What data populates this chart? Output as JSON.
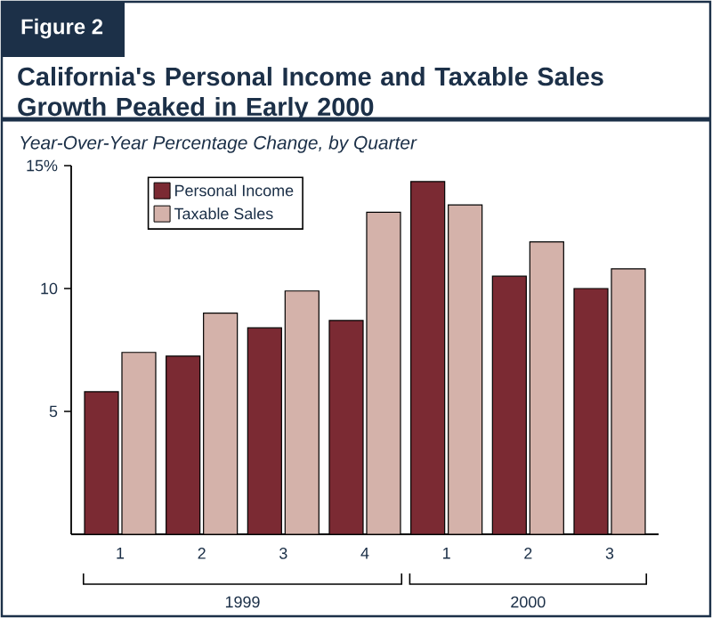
{
  "chart_data": {
    "type": "bar",
    "title": "California's Personal Income and Taxable Sales Growth Peaked in Early 2000",
    "subtitle": "Year-Over-Year Percentage Change, by Quarter",
    "annotations": [
      "Figure 2",
      "1999",
      "2000"
    ],
    "categories": [
      "1",
      "2",
      "3",
      "4",
      "1",
      "2",
      "3"
    ],
    "series": [
      {
        "name": "Personal Income",
        "color": "#7b2a33",
        "values": [
          5.8,
          7.25,
          8.4,
          8.7,
          14.35,
          10.5,
          10.0
        ]
      },
      {
        "name": "Taxable Sales",
        "color": "#d4b2aa",
        "values": [
          7.4,
          9.0,
          9.9,
          13.1,
          13.4,
          11.9,
          10.8
        ]
      }
    ],
    "ylim": [
      0,
      15
    ],
    "yticks": [
      {
        "value": 15,
        "label": "15%"
      },
      10,
      5
    ],
    "legend": "top left"
  }
}
